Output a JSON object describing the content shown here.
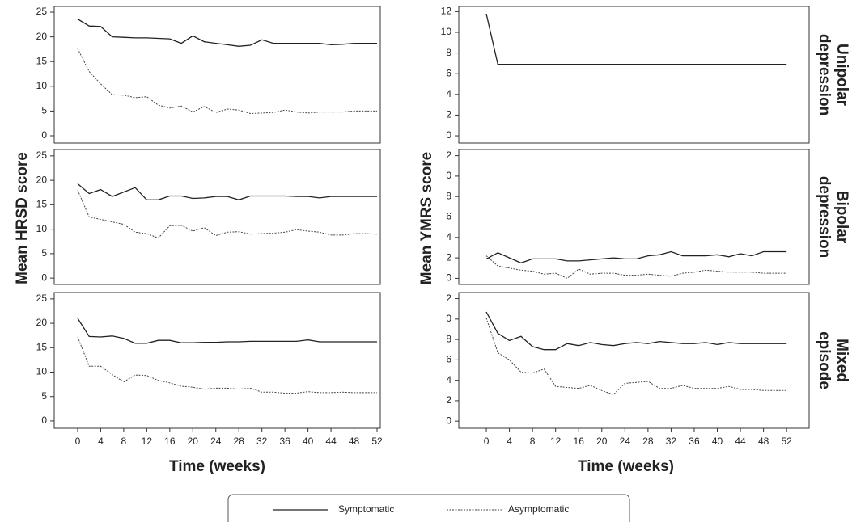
{
  "chart_data": [
    {
      "type": "line",
      "xlim": [
        -4.07,
        52.56
      ],
      "ylim": [
        -1.47,
        26.15
      ],
      "yticks": [
        0,
        5,
        10,
        15,
        20,
        25
      ],
      "x": [
        0,
        2,
        4,
        6,
        8,
        10,
        12,
        14,
        16,
        18,
        20,
        22,
        24,
        26,
        28,
        30,
        32,
        34,
        36,
        38,
        40,
        42,
        44,
        46,
        48,
        50,
        52
      ],
      "series": [
        {
          "name": "Symptomatic",
          "color": "#222222",
          "style": "solid",
          "values": [
            23.6,
            22.2,
            22.1,
            20.0,
            19.9,
            19.8,
            19.8,
            19.7,
            19.6,
            18.7,
            20.2,
            19.0,
            18.7,
            18.4,
            18.1,
            18.3,
            19.4,
            18.7,
            18.7,
            18.7,
            18.7,
            18.7,
            18.4,
            18.5,
            18.7,
            18.7,
            18.7
          ]
        },
        {
          "name": "Asymptomatic",
          "color": "#444444",
          "style": "dotted",
          "values": [
            17.6,
            13.0,
            10.5,
            8.3,
            8.2,
            7.7,
            7.9,
            6.2,
            5.6,
            6.0,
            4.8,
            5.9,
            4.7,
            5.4,
            5.2,
            4.5,
            4.6,
            4.7,
            5.2,
            4.8,
            4.6,
            4.8,
            4.8,
            4.8,
            5.0,
            5.0,
            5.0
          ]
        }
      ]
    },
    {
      "type": "line",
      "xlim": [
        -4.07,
        52.56
      ],
      "ylim": [
        -1.3,
        26.3
      ],
      "yticks": [
        0,
        5,
        10,
        15,
        20,
        25
      ],
      "y_label": "Mean HRSD score",
      "x": [
        0,
        2,
        4,
        6,
        8,
        10,
        12,
        14,
        16,
        18,
        20,
        22,
        24,
        26,
        28,
        30,
        32,
        34,
        36,
        38,
        40,
        42,
        44,
        46,
        48,
        50,
        52
      ],
      "series": [
        {
          "name": "Symptomatic",
          "color": "#222222",
          "style": "solid",
          "values": [
            19.3,
            17.3,
            18.1,
            16.7,
            17.6,
            18.5,
            16.0,
            16.0,
            16.8,
            16.8,
            16.3,
            16.4,
            16.7,
            16.7,
            16.0,
            16.8,
            16.8,
            16.8,
            16.8,
            16.7,
            16.7,
            16.4,
            16.7,
            16.7,
            16.7,
            16.7,
            16.7
          ]
        },
        {
          "name": "Asymptomatic",
          "color": "#444444",
          "style": "dotted",
          "values": [
            18.0,
            12.5,
            12.0,
            11.5,
            11.0,
            9.4,
            9.1,
            8.2,
            10.7,
            10.8,
            9.6,
            10.3,
            8.7,
            9.4,
            9.5,
            9.0,
            9.1,
            9.2,
            9.4,
            9.9,
            9.6,
            9.4,
            8.8,
            8.8,
            9.1,
            9.1,
            9.0
          ]
        }
      ]
    },
    {
      "type": "line",
      "xlim": [
        -4.07,
        52.56
      ],
      "ylim": [
        -1.5,
        26.3
      ],
      "yticks": [
        0,
        5,
        10,
        15,
        20,
        25
      ],
      "xticks": [
        0,
        4,
        8,
        12,
        16,
        20,
        24,
        28,
        32,
        36,
        40,
        44,
        48,
        52
      ],
      "x_label": "Time (weeks)",
      "x": [
        0,
        2,
        4,
        6,
        8,
        10,
        12,
        14,
        16,
        18,
        20,
        22,
        24,
        26,
        28,
        30,
        32,
        34,
        36,
        38,
        40,
        42,
        44,
        46,
        48,
        50,
        52
      ],
      "series": [
        {
          "name": "Symptomatic",
          "color": "#222222",
          "style": "solid",
          "values": [
            21.0,
            17.3,
            17.2,
            17.4,
            16.9,
            15.9,
            15.9,
            16.5,
            16.5,
            16.0,
            16.0,
            16.1,
            16.1,
            16.2,
            16.2,
            16.3,
            16.3,
            16.3,
            16.3,
            16.3,
            16.6,
            16.2,
            16.2,
            16.2,
            16.2,
            16.2,
            16.2
          ]
        },
        {
          "name": "Asymptomatic",
          "color": "#444444",
          "style": "dotted",
          "values": [
            17.2,
            11.2,
            11.2,
            9.5,
            8.0,
            9.4,
            9.3,
            8.3,
            7.8,
            7.1,
            6.9,
            6.5,
            6.7,
            6.7,
            6.5,
            6.7,
            5.9,
            5.9,
            5.7,
            5.7,
            6.0,
            5.8,
            5.8,
            5.9,
            5.8,
            5.8,
            5.8
          ]
        }
      ]
    },
    {
      "type": "line",
      "xlim": [
        -4.77,
        55.9
      ],
      "ylim": [
        -0.7,
        12.5
      ],
      "yticks": [
        0,
        2,
        4,
        6,
        8,
        10,
        12
      ],
      "row_label": [
        "Unipolar",
        "depression"
      ],
      "x": [
        0,
        2,
        4,
        6,
        8,
        10,
        12,
        14,
        16,
        18,
        20,
        22,
        24,
        26,
        28,
        30,
        32,
        34,
        36,
        38,
        40,
        42,
        44,
        46,
        48,
        50,
        52
      ],
      "series": [
        {
          "name": "Symptomatic",
          "color": "#222222",
          "style": "solid",
          "values": [
            11.8,
            6.9,
            6.9,
            6.9,
            6.9,
            6.9,
            6.9,
            6.9,
            6.9,
            6.9,
            6.9,
            6.9,
            6.9,
            6.9,
            6.9,
            6.9,
            6.9,
            6.9,
            6.9,
            6.9,
            6.9,
            6.9,
            6.9,
            6.9,
            6.9,
            6.9,
            6.9
          ]
        }
      ]
    },
    {
      "type": "line",
      "xlim": [
        -4.77,
        55.9
      ],
      "ylim": [
        -0.6,
        12.6
      ],
      "yticks": [
        0,
        2,
        4,
        6,
        8,
        {
          "value": 10,
          "label": "0"
        },
        {
          "value": 12,
          "label": "2"
        }
      ],
      "y_label": "Mean YMRS score",
      "row_label": [
        "Bipolar",
        "depression"
      ],
      "x": [
        0,
        2,
        4,
        6,
        8,
        10,
        12,
        14,
        16,
        18,
        20,
        22,
        24,
        26,
        28,
        30,
        32,
        34,
        36,
        38,
        40,
        42,
        44,
        46,
        48,
        50,
        52
      ],
      "series": [
        {
          "name": "Symptomatic",
          "color": "#222222",
          "style": "solid",
          "values": [
            1.9,
            2.5,
            2.0,
            1.5,
            1.9,
            1.9,
            1.9,
            1.7,
            1.7,
            1.8,
            1.9,
            2.0,
            1.9,
            1.9,
            2.2,
            2.3,
            2.6,
            2.2,
            2.2,
            2.2,
            2.3,
            2.1,
            2.4,
            2.2,
            2.6,
            2.6,
            2.6
          ]
        },
        {
          "name": "Asymptomatic",
          "color": "#444444",
          "style": "dotted",
          "values": [
            2.2,
            1.2,
            1.0,
            0.8,
            0.7,
            0.4,
            0.5,
            0.0,
            0.9,
            0.4,
            0.5,
            0.5,
            0.3,
            0.3,
            0.4,
            0.3,
            0.2,
            0.5,
            0.6,
            0.8,
            0.7,
            0.6,
            0.6,
            0.6,
            0.5,
            0.5,
            0.5
          ]
        }
      ]
    },
    {
      "type": "line",
      "xlim": [
        -4.77,
        55.9
      ],
      "ylim": [
        -0.7,
        12.6
      ],
      "yticks": [
        0,
        2,
        4,
        6,
        8,
        {
          "value": 10,
          "label": "0"
        },
        {
          "value": 12,
          "label": "2"
        }
      ],
      "xticks": [
        0,
        4,
        8,
        12,
        16,
        20,
        24,
        28,
        32,
        36,
        40,
        44,
        48,
        52
      ],
      "x_label": "Time (weeks)",
      "row_label": [
        "Mixed",
        "episode"
      ],
      "x": [
        0,
        2,
        4,
        6,
        8,
        10,
        12,
        14,
        16,
        18,
        20,
        22,
        24,
        26,
        28,
        30,
        32,
        34,
        36,
        38,
        40,
        42,
        44,
        46,
        48,
        50,
        52
      ],
      "series": [
        {
          "name": "Symptomatic",
          "color": "#222222",
          "style": "solid",
          "values": [
            10.7,
            8.6,
            7.9,
            8.3,
            7.3,
            7.0,
            7.0,
            7.6,
            7.4,
            7.7,
            7.5,
            7.4,
            7.6,
            7.7,
            7.6,
            7.8,
            7.7,
            7.6,
            7.6,
            7.7,
            7.5,
            7.7,
            7.6,
            7.6,
            7.6,
            7.6,
            7.6
          ]
        },
        {
          "name": "Asymptomatic",
          "color": "#444444",
          "style": "dotted",
          "values": [
            10.1,
            6.7,
            6.0,
            4.8,
            4.7,
            5.1,
            3.4,
            3.3,
            3.2,
            3.5,
            3.0,
            2.6,
            3.7,
            3.8,
            3.9,
            3.2,
            3.2,
            3.5,
            3.2,
            3.2,
            3.2,
            3.4,
            3.1,
            3.1,
            3.0,
            3.0,
            3.0
          ]
        }
      ]
    }
  ]
}
